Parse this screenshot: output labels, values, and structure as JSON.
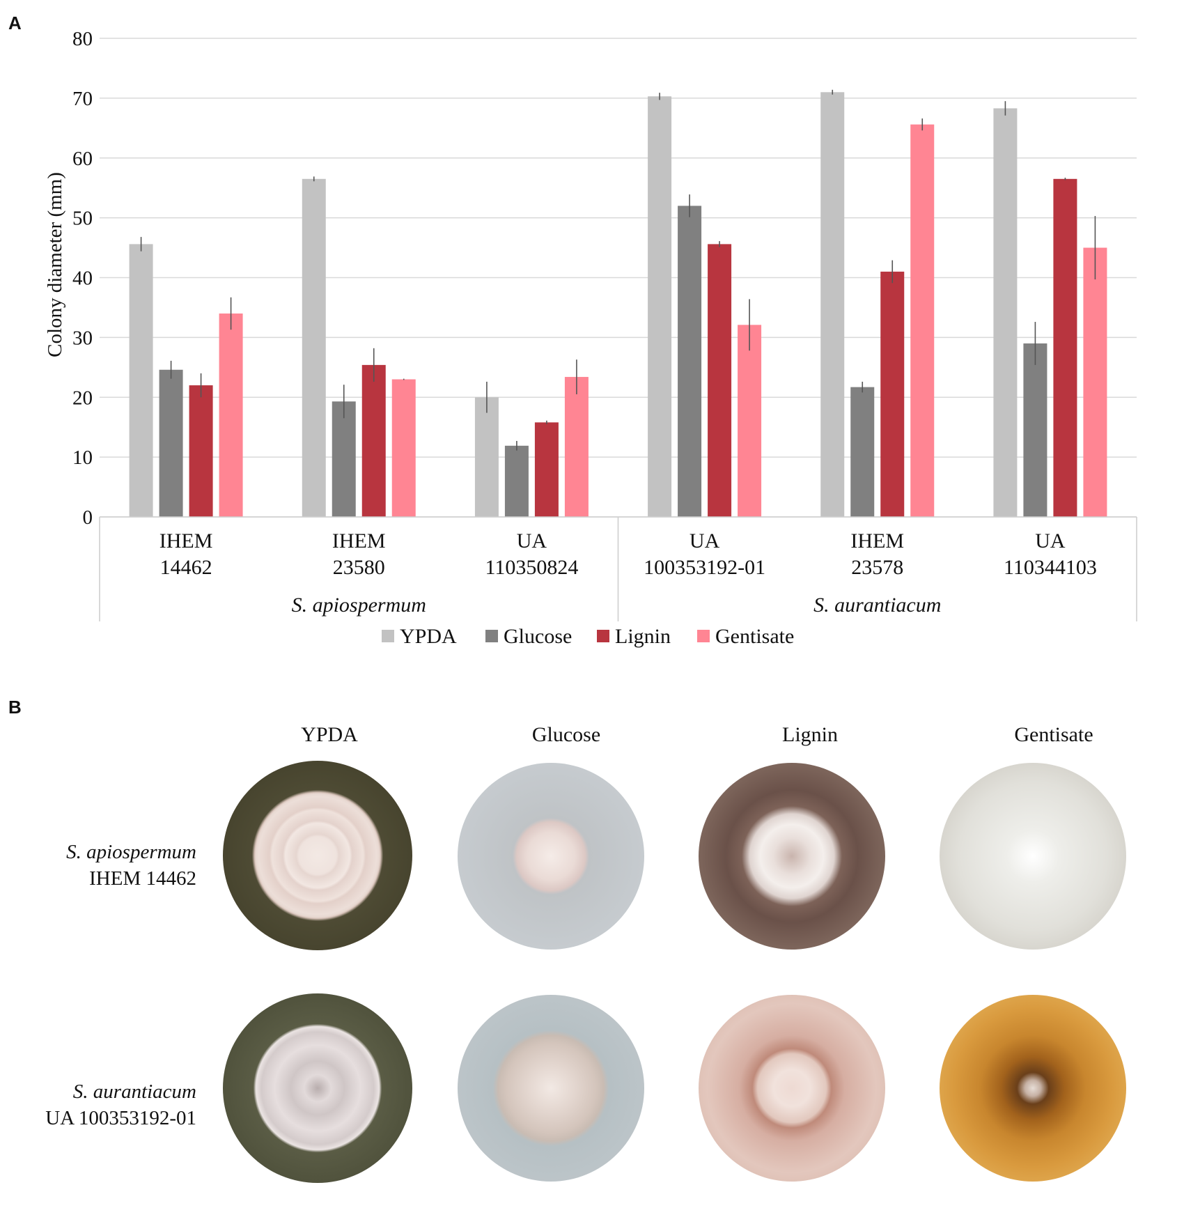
{
  "panel_a_label": "A",
  "panel_b_label": "B",
  "chart_data": {
    "type": "bar",
    "title": "",
    "xlabel": "",
    "ylabel": "Colony diameter (mm)",
    "ylim": [
      0,
      80
    ],
    "yticks": [
      0,
      10,
      20,
      30,
      40,
      50,
      60,
      70,
      80
    ],
    "grid": true,
    "legend_position": "bottom",
    "categories": [
      {
        "line1": "IHEM",
        "line2": "14462"
      },
      {
        "line1": "IHEM",
        "line2": "23580"
      },
      {
        "line1": "UA",
        "line2": "110350824"
      },
      {
        "line1": "UA",
        "line2": "100353192-01"
      },
      {
        "line1": "IHEM",
        "line2": "23578"
      },
      {
        "line1": "UA",
        "line2": "110344103"
      }
    ],
    "groups": [
      {
        "name": "S. apiospermum",
        "categories": [
          0,
          1,
          2
        ]
      },
      {
        "name": "S. aurantiacum",
        "categories": [
          3,
          4,
          5
        ]
      }
    ],
    "series": [
      {
        "name": "YPDA",
        "color": "#c2c2c2",
        "values": [
          45.6,
          56.5,
          20.0,
          70.3,
          71.0,
          68.3
        ],
        "errors": [
          1.2,
          0.4,
          2.6,
          0.6,
          0.4,
          1.2
        ]
      },
      {
        "name": "Glucose",
        "color": "#808080",
        "values": [
          24.6,
          19.3,
          11.9,
          52.0,
          21.7,
          29.0
        ],
        "errors": [
          1.5,
          2.8,
          0.8,
          1.9,
          0.9,
          3.6
        ]
      },
      {
        "name": "Lignin",
        "color": "#b8353f",
        "values": [
          22.0,
          25.4,
          15.8,
          45.6,
          41.0,
          56.5
        ],
        "errors": [
          2.0,
          2.8,
          0.3,
          0.5,
          1.9,
          0.2
        ]
      },
      {
        "name": "Gentisate",
        "color": "#ff8593",
        "values": [
          34.0,
          23.0,
          23.4,
          32.1,
          65.6,
          45.0
        ],
        "errors": [
          2.7,
          0.1,
          2.9,
          4.3,
          1.0,
          5.3
        ]
      }
    ]
  },
  "photos": {
    "columns": [
      "YPDA",
      "Glucose",
      "Lignin",
      "Gentisate"
    ],
    "rows": [
      {
        "species": "S. apiospermum",
        "strain": "IHEM 14462"
      },
      {
        "species": "S. aurantiacum",
        "strain": "UA 100353192-01"
      }
    ]
  }
}
